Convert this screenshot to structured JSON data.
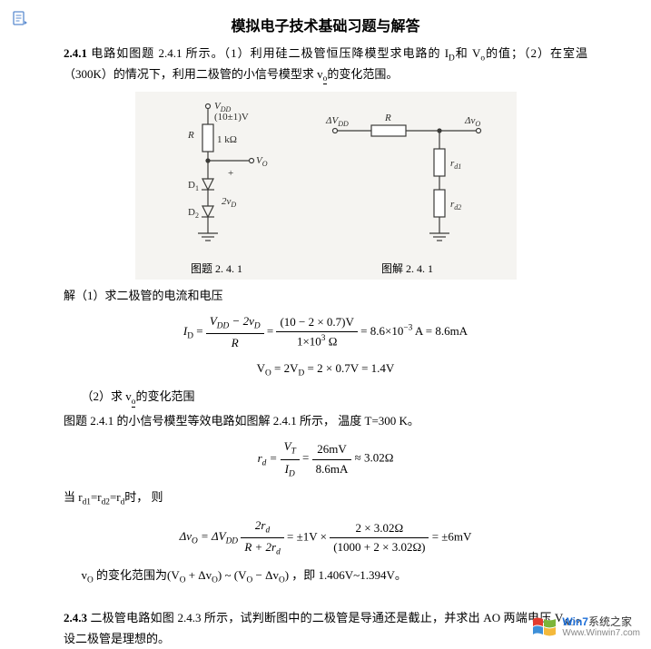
{
  "header": {
    "title": "模拟电子技术基础习题与解答"
  },
  "problem_241": {
    "label": "2.4.1",
    "text_part1": "电路如图题 2.4.1 所示。（1）利用硅二极管恒压降模型求电路的 I",
    "sub1": "D",
    "text_part2": "和  V",
    "sub2": "o",
    "text_part3": "的值；（2）在室温（300K）的情况下，利用二极管的小信号模型求 v",
    "sub3": "o",
    "text_part4": "的变化范围。"
  },
  "figure": {
    "left": {
      "vdd_label": "V",
      "vdd_sub": "DD",
      "vdd_val": "(10±1)V",
      "R_label": "R",
      "R_val": "1 kΩ",
      "vo_label": "V",
      "vo_sub": "O",
      "plus": "+",
      "d1": "D",
      "d1_sub": "1",
      "d2v": "2v",
      "d2v_sub": "D",
      "d2": "D",
      "d2_sub": "2",
      "caption": "图题 2. 4. 1"
    },
    "right": {
      "dv": "ΔV",
      "dv_sub": "DD",
      "R_label": "R",
      "dvo": "Δv",
      "dvo_sub": "O",
      "rd1": "r",
      "rd1_sub": "d1",
      "rd2": "r",
      "rd2_sub": "d2",
      "caption": "图解 2. 4. 1"
    },
    "colors": {
      "bg": "#f5f4f1",
      "line": "#3b3b38",
      "text": "#2b2b28"
    }
  },
  "solution": {
    "s1_head": "解（1）求二极管的电流和电压",
    "eq1": {
      "lhs_I": "I",
      "lhs_sub": "D",
      "f1n": "V<sub>DD</sub> − 2v<sub>D</sub>",
      "f1d": "R",
      "f2n": "(10 − 2 × 0.7)V",
      "f2d": "1×10<sup>3</sup> Ω",
      "rhs": "= 8.6×10<sup>−3</sup> A = 8.6mA"
    },
    "eq2": "V<sub>O</sub> = 2V<sub>D</sub> = 2 × 0.7V = 1.4V",
    "s2_head": "（2）求 v",
    "s2_sub": "o",
    "s2_tail": "的变化范围",
    "s2_line2": "图题 2.4.1 的小信号模型等效电路如图解 2.4.1 所示， 温度  T=300 K。",
    "eq3": {
      "lhs": "r<sub>d</sub> =",
      "f1n": "V<sub>T</sub>",
      "f1d": "I<sub>D</sub>",
      "f2n": "26mV",
      "f2d": "8.6mA",
      "rhs": "≈ 3.02Ω"
    },
    "s3_line": "当 r<sub>d1</sub>=r<sub>d2</sub>=r<sub>d</sub>时， 则",
    "eq4": {
      "lhs": "Δv<sub>O</sub> = ΔV<sub>DD</sub>",
      "f1n": "2r<sub>d</sub>",
      "f1d": "R + 2r<sub>d</sub>",
      "mid": "= ±1V ×",
      "f2n": "2 × 3.02Ω",
      "f2d": "(1000 + 2 × 3.02Ω)",
      "rhs": "= ±6mV"
    },
    "s4_line": "v<sub>O</sub> 的变化范围为(V<sub>O</sub> + Δv<sub>O</sub>) ~ (V<sub>O</sub> − Δv<sub>O</sub>) ，即 1.406V~1.394V。"
  },
  "problem_243": {
    "label": "2.4.3",
    "text_part1": "二极管电路如图 2.4.3 所示，试判断图中的二极管是导通还是截止，并求出 AO 两端电压 V",
    "sub1": "AO",
    "text_part2": "。设二极管是理想的。"
  },
  "watermark": {
    "line1a": "Win7",
    "line1b": "系统之家",
    "line2": "Www.Winwin7.com",
    "flag_colors": [
      "#e23b2e",
      "#7bb53a",
      "#3d8fd8",
      "#f4b93b"
    ]
  }
}
